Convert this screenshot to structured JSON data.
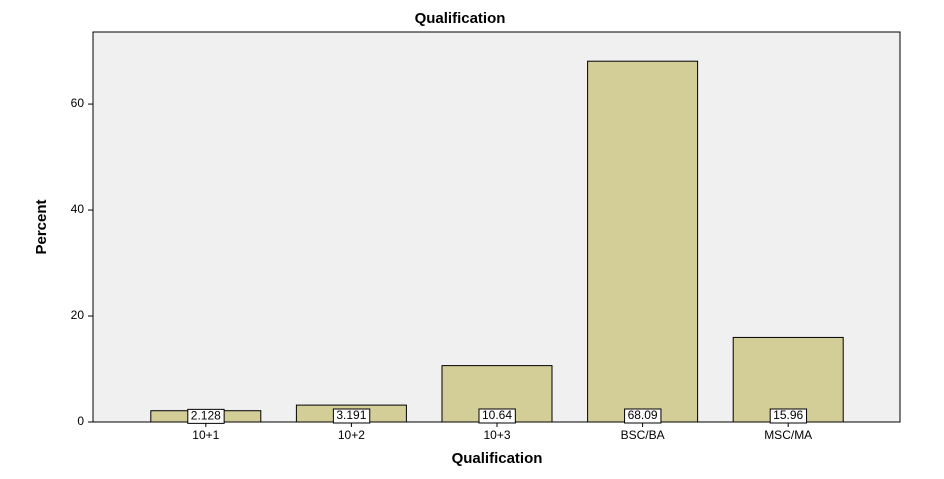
{
  "chart_data": {
    "type": "bar",
    "title": "Qualification",
    "x_label": "Qualification",
    "y_label": "Percent",
    "categories": [
      "10+1",
      "10+2",
      "10+3",
      "BSC/BA",
      "MSC/MA"
    ],
    "values": [
      2.128,
      3.191,
      10.64,
      68.09,
      15.96
    ],
    "color": "#d3ce97",
    "ylim": [
      0,
      73.6
    ],
    "yticks": [
      0,
      20,
      40,
      60
    ],
    "grid": false
  }
}
